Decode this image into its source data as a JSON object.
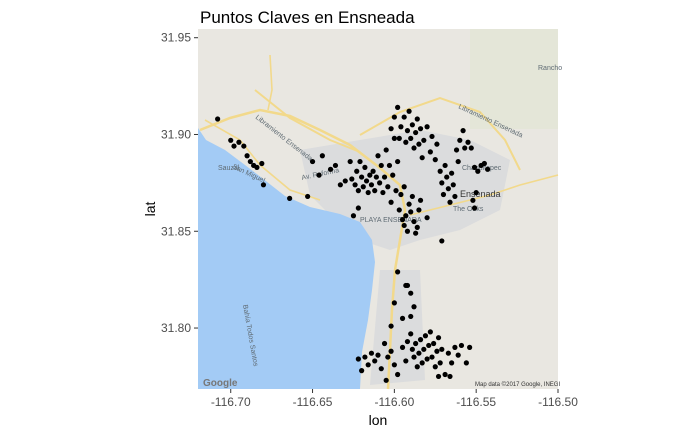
{
  "colors": {
    "land": "#e9e7e1",
    "water": "#a3cbf5",
    "urban": "#d9dadd",
    "green": "#dfe5cf",
    "road": "#f2d98b",
    "point": "#000000",
    "tick": "#4d4d4d"
  },
  "map_labels": {
    "city": "Ensenada",
    "place1": "The Oaks",
    "place2": "PLAYA ENSENADA",
    "bay": "Bahía Todos Santos",
    "town1": "Sauzal",
    "town2": "Rancho",
    "town3": "Chapultepec",
    "road1": "Libramiento Ensenada",
    "road2": "Libramiento Ensenada",
    "road3": "Av. Reforma",
    "shore": "San Miguel",
    "attribution": "Map data ©2017 Google, INEGI",
    "google": "Google"
  },
  "chart_data": {
    "type": "scatter",
    "title": "Puntos Claves en Ensneada",
    "xlabel": "lon",
    "ylabel": "lat",
    "xlim": [
      -116.72,
      -116.5
    ],
    "ylim": [
      31.7685,
      31.9545
    ],
    "xticks": [
      -116.7,
      -116.65,
      -116.6,
      -116.55,
      -116.5
    ],
    "xtick_labels": [
      "-116.70",
      "-116.65",
      "-116.60",
      "-116.55",
      "-116.50"
    ],
    "yticks": [
      31.8,
      31.85,
      31.9,
      31.95
    ],
    "ytick_labels": [
      "31.80",
      "31.85",
      "31.90",
      "31.95"
    ],
    "grid": false,
    "points": [
      [
        -116.708,
        31.908
      ],
      [
        -116.7,
        31.897
      ],
      [
        -116.698,
        31.894
      ],
      [
        -116.695,
        31.896
      ],
      [
        -116.692,
        31.894
      ],
      [
        -116.69,
        31.889
      ],
      [
        -116.688,
        31.886
      ],
      [
        -116.686,
        31.884
      ],
      [
        -116.684,
        31.883
      ],
      [
        -116.681,
        31.885
      ],
      [
        -116.68,
        31.874
      ],
      [
        -116.664,
        31.867
      ],
      [
        -116.653,
        31.868
      ],
      [
        -116.65,
        31.886
      ],
      [
        -116.646,
        31.879
      ],
      [
        -116.644,
        31.889
      ],
      [
        -116.639,
        31.882
      ],
      [
        -116.636,
        31.884
      ],
      [
        -116.633,
        31.874
      ],
      [
        -116.63,
        31.876
      ],
      [
        -116.627,
        31.886
      ],
      [
        -116.626,
        31.877
      ],
      [
        -116.624,
        31.874
      ],
      [
        -116.623,
        31.881
      ],
      [
        -116.622,
        31.871
      ],
      [
        -116.621,
        31.886
      ],
      [
        -116.62,
        31.878
      ],
      [
        -116.619,
        31.873
      ],
      [
        -116.618,
        31.883
      ],
      [
        -116.617,
        31.876
      ],
      [
        -116.616,
        31.87
      ],
      [
        -116.615,
        31.879
      ],
      [
        -116.614,
        31.874
      ],
      [
        -116.613,
        31.881
      ],
      [
        -116.612,
        31.871
      ],
      [
        -116.611,
        31.878
      ],
      [
        -116.61,
        31.889
      ],
      [
        -116.609,
        31.875
      ],
      [
        -116.608,
        31.884
      ],
      [
        -116.607,
        31.87
      ],
      [
        -116.606,
        31.878
      ],
      [
        -116.605,
        31.892
      ],
      [
        -116.604,
        31.873
      ],
      [
        -116.603,
        31.884
      ],
      [
        -116.602,
        31.865
      ],
      [
        -116.601,
        31.879
      ],
      [
        -116.6,
        31.898
      ],
      [
        -116.599,
        31.871
      ],
      [
        -116.598,
        31.886
      ],
      [
        -116.597,
        31.861
      ],
      [
        -116.596,
        31.869
      ],
      [
        -116.595,
        31.856
      ],
      [
        -116.594,
        31.853
      ],
      [
        -116.593,
        31.858
      ],
      [
        -116.592,
        31.85
      ],
      [
        -116.591,
        31.864
      ],
      [
        -116.59,
        31.86
      ],
      [
        -116.589,
        31.868
      ],
      [
        -116.588,
        31.855
      ],
      [
        -116.587,
        31.849
      ],
      [
        -116.586,
        31.852
      ],
      [
        -116.585,
        31.861
      ],
      [
        -116.584,
        31.866
      ],
      [
        -116.602,
        31.903
      ],
      [
        -116.6,
        31.909
      ],
      [
        -116.598,
        31.914
      ],
      [
        -116.597,
        31.898
      ],
      [
        -116.596,
        31.904
      ],
      [
        -116.594,
        31.909
      ],
      [
        -116.593,
        31.896
      ],
      [
        -116.592,
        31.902
      ],
      [
        -116.591,
        31.912
      ],
      [
        -116.59,
        31.898
      ],
      [
        -116.589,
        31.905
      ],
      [
        -116.588,
        31.893
      ],
      [
        -116.587,
        31.901
      ],
      [
        -116.586,
        31.908
      ],
      [
        -116.585,
        31.895
      ],
      [
        -116.584,
        31.903
      ],
      [
        -116.583,
        31.888
      ],
      [
        -116.582,
        31.897
      ],
      [
        -116.58,
        31.904
      ],
      [
        -116.578,
        31.891
      ],
      [
        -116.577,
        31.899
      ],
      [
        -116.575,
        31.887
      ],
      [
        -116.574,
        31.895
      ],
      [
        -116.572,
        31.881
      ],
      [
        -116.571,
        31.875
      ],
      [
        -116.57,
        31.869
      ],
      [
        -116.569,
        31.884
      ],
      [
        -116.568,
        31.878
      ],
      [
        -116.567,
        31.872
      ],
      [
        -116.566,
        31.865
      ],
      [
        -116.565,
        31.88
      ],
      [
        -116.564,
        31.874
      ],
      [
        -116.563,
        31.868
      ],
      [
        -116.562,
        31.892
      ],
      [
        -116.561,
        31.886
      ],
      [
        -116.56,
        31.897
      ],
      [
        -116.558,
        31.902
      ],
      [
        -116.557,
        31.893
      ],
      [
        -116.555,
        31.896
      ],
      [
        -116.553,
        31.893
      ],
      [
        -116.551,
        31.883
      ],
      [
        -116.549,
        31.881
      ],
      [
        -116.547,
        31.884
      ],
      [
        -116.545,
        31.885
      ],
      [
        -116.543,
        31.882
      ],
      [
        -116.552,
        31.866
      ],
      [
        -116.551,
        31.862
      ],
      [
        -116.55,
        31.87
      ],
      [
        -116.571,
        31.845
      ],
      [
        -116.58,
        31.857
      ],
      [
        -116.594,
        31.873
      ],
      [
        -116.622,
        31.862
      ],
      [
        -116.625,
        31.858
      ],
      [
        -116.59,
        31.818
      ],
      [
        -116.592,
        31.822
      ],
      [
        -116.598,
        31.829
      ],
      [
        -116.595,
        31.805
      ],
      [
        -116.602,
        31.801
      ],
      [
        -116.59,
        31.806
      ],
      [
        -116.595,
        31.79
      ],
      [
        -116.593,
        31.783
      ],
      [
        -116.592,
        31.793
      ],
      [
        -116.59,
        31.797
      ],
      [
        -116.589,
        31.789
      ],
      [
        -116.588,
        31.785
      ],
      [
        -116.587,
        31.792
      ],
      [
        -116.586,
        31.78
      ],
      [
        -116.585,
        31.787
      ],
      [
        -116.584,
        31.794
      ],
      [
        -116.583,
        31.782
      ],
      [
        -116.582,
        31.789
      ],
      [
        -116.581,
        31.796
      ],
      [
        -116.58,
        31.784
      ],
      [
        -116.579,
        31.791
      ],
      [
        -116.578,
        31.798
      ],
      [
        -116.577,
        31.785
      ],
      [
        -116.576,
        31.792
      ],
      [
        -116.575,
        31.78
      ],
      [
        -116.574,
        31.788
      ],
      [
        -116.573,
        31.795
      ],
      [
        -116.572,
        31.782
      ],
      [
        -116.571,
        31.789
      ],
      [
        -116.569,
        31.776
      ],
      [
        -116.567,
        31.787
      ],
      [
        -116.565,
        31.782
      ],
      [
        -116.563,
        31.79
      ],
      [
        -116.561,
        31.786
      ],
      [
        -116.559,
        31.791
      ],
      [
        -116.556,
        31.782
      ],
      [
        -116.554,
        31.79
      ],
      [
        -116.6,
        31.781
      ],
      [
        -116.602,
        31.788
      ],
      [
        -116.604,
        31.785
      ],
      [
        -116.606,
        31.792
      ],
      [
        -116.608,
        31.779
      ],
      [
        -116.61,
        31.786
      ],
      [
        -116.612,
        31.783
      ],
      [
        -116.614,
        31.787
      ],
      [
        -116.616,
        31.781
      ],
      [
        -116.618,
        31.785
      ],
      [
        -116.62,
        31.778
      ],
      [
        -116.622,
        31.784
      ],
      [
        -116.605,
        31.773
      ],
      [
        -116.598,
        31.776
      ],
      [
        -116.573,
        31.775
      ],
      [
        -116.566,
        31.775
      ],
      [
        -116.588,
        31.811
      ],
      [
        -116.593,
        31.822
      ],
      [
        -116.6,
        31.813
      ]
    ]
  }
}
